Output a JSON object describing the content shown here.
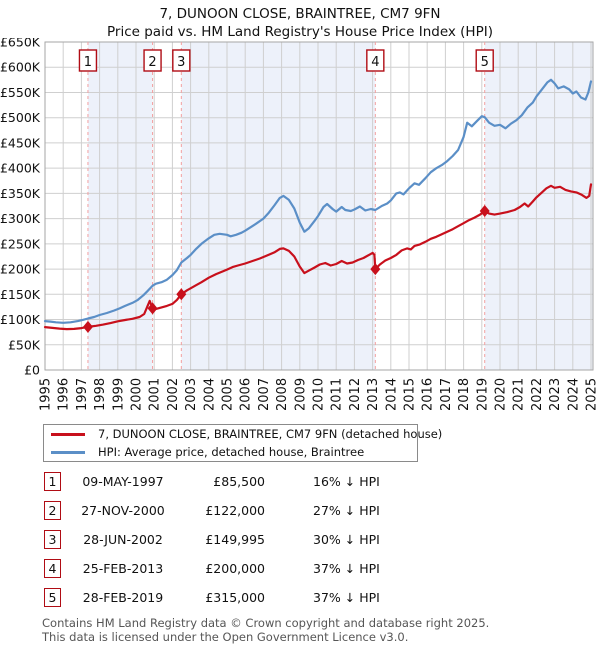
{
  "title": "7, DUNOON CLOSE, BRAINTREE, CM7 9FN",
  "subtitle": "Price paid vs. HM Land Registry's House Price Index (HPI)",
  "colors": {
    "price_line": "#c8101c",
    "hpi_line": "#5b8fc7",
    "band_fill": "#edf1fa",
    "sale_dashed_line": "#f2a0a0",
    "marker_box_border": "#b00c14",
    "grid": "#cfcfcf",
    "plot_border": "#a6a6a6",
    "plot_background": "#ffffff"
  },
  "chart_data": {
    "type": "line",
    "title": "7, DUNOON CLOSE, BRAINTREE, CM7 9FN",
    "subtitle": "Price paid vs. HM Land Registry's House Price Index (HPI)",
    "xlabel": "",
    "ylabel": "",
    "x_axis": {
      "min": 1995,
      "max": 2025,
      "tick_years": [
        1995,
        1996,
        1997,
        1998,
        1999,
        2000,
        2001,
        2002,
        2003,
        2004,
        2005,
        2006,
        2007,
        2008,
        2009,
        2010,
        2011,
        2012,
        2013,
        2014,
        2015,
        2016,
        2017,
        2018,
        2019,
        2020,
        2021,
        2022,
        2023,
        2024,
        2025
      ]
    },
    "y_axis": {
      "min": 0,
      "max": 650000,
      "step": 50000,
      "tick_labels": [
        "£0",
        "£50K",
        "£100K",
        "£150K",
        "£200K",
        "£250K",
        "£300K",
        "£350K",
        "£400K",
        "£450K",
        "£500K",
        "£550K",
        "£600K",
        "£650K"
      ]
    },
    "grid": true,
    "legend_position": "below",
    "values_unit": "GBP_thousands",
    "series": [
      {
        "name": "HPI: Average price, detached house, Braintree",
        "color": "#5b8fc7",
        "points": [
          [
            1995.0,
            97
          ],
          [
            1995.3,
            96
          ],
          [
            1995.6,
            94.5
          ],
          [
            1996.0,
            93.5
          ],
          [
            1996.4,
            94.5
          ],
          [
            1996.8,
            97
          ],
          [
            1997.1,
            99.5
          ],
          [
            1997.36,
            102
          ],
          [
            1997.7,
            105
          ],
          [
            1998.0,
            109
          ],
          [
            1998.4,
            113
          ],
          [
            1998.8,
            118
          ],
          [
            1999.1,
            122
          ],
          [
            1999.4,
            127
          ],
          [
            1999.8,
            133
          ],
          [
            2000.1,
            139
          ],
          [
            2000.4,
            148
          ],
          [
            2000.65,
            157
          ],
          [
            2000.91,
            167
          ],
          [
            2001.1,
            171
          ],
          [
            2001.4,
            174
          ],
          [
            2001.7,
            179
          ],
          [
            2002.0,
            188
          ],
          [
            2002.25,
            198
          ],
          [
            2002.49,
            213
          ],
          [
            2002.8,
            222
          ],
          [
            2003.0,
            228
          ],
          [
            2003.3,
            240
          ],
          [
            2003.6,
            250
          ],
          [
            2004.0,
            261
          ],
          [
            2004.3,
            268
          ],
          [
            2004.6,
            270
          ],
          [
            2005.0,
            268
          ],
          [
            2005.2,
            265
          ],
          [
            2005.5,
            268
          ],
          [
            2005.8,
            272
          ],
          [
            2006.0,
            276
          ],
          [
            2006.3,
            283
          ],
          [
            2006.6,
            290
          ],
          [
            2007.0,
            300
          ],
          [
            2007.3,
            312
          ],
          [
            2007.6,
            326
          ],
          [
            2007.9,
            341
          ],
          [
            2008.1,
            345
          ],
          [
            2008.4,
            337
          ],
          [
            2008.7,
            320
          ],
          [
            2009.0,
            292
          ],
          [
            2009.25,
            274
          ],
          [
            2009.5,
            281
          ],
          [
            2009.8,
            295
          ],
          [
            2010.0,
            305
          ],
          [
            2010.3,
            323
          ],
          [
            2010.5,
            329
          ],
          [
            2010.8,
            319
          ],
          [
            2011.0,
            314
          ],
          [
            2011.3,
            323
          ],
          [
            2011.5,
            317
          ],
          [
            2011.8,
            315
          ],
          [
            2012.0,
            318
          ],
          [
            2012.3,
            324
          ],
          [
            2012.6,
            316
          ],
          [
            2012.9,
            319
          ],
          [
            2013.15,
            317
          ],
          [
            2013.5,
            325
          ],
          [
            2013.8,
            330
          ],
          [
            2014.0,
            336
          ],
          [
            2014.3,
            350
          ],
          [
            2014.5,
            352
          ],
          [
            2014.7,
            348
          ],
          [
            2015.0,
            360
          ],
          [
            2015.3,
            370
          ],
          [
            2015.55,
            367
          ],
          [
            2015.9,
            380
          ],
          [
            2016.2,
            392
          ],
          [
            2016.5,
            400
          ],
          [
            2016.8,
            406
          ],
          [
            2017.1,
            414
          ],
          [
            2017.4,
            424
          ],
          [
            2017.7,
            436
          ],
          [
            2018.0,
            462
          ],
          [
            2018.2,
            490
          ],
          [
            2018.45,
            483
          ],
          [
            2018.7,
            492
          ],
          [
            2019.0,
            503
          ],
          [
            2019.16,
            501
          ],
          [
            2019.4,
            490
          ],
          [
            2019.7,
            484
          ],
          [
            2020.0,
            486
          ],
          [
            2020.3,
            479
          ],
          [
            2020.6,
            488
          ],
          [
            2020.9,
            495
          ],
          [
            2021.2,
            505
          ],
          [
            2021.5,
            520
          ],
          [
            2021.8,
            530
          ],
          [
            2022.0,
            542
          ],
          [
            2022.3,
            556
          ],
          [
            2022.6,
            570
          ],
          [
            2022.8,
            575
          ],
          [
            2023.0,
            568
          ],
          [
            2023.2,
            558
          ],
          [
            2023.5,
            562
          ],
          [
            2023.8,
            556
          ],
          [
            2024.0,
            548
          ],
          [
            2024.2,
            552
          ],
          [
            2024.45,
            540
          ],
          [
            2024.7,
            536
          ],
          [
            2024.85,
            550
          ],
          [
            2025.0,
            572
          ]
        ]
      },
      {
        "name": "7, DUNOON CLOSE, BRAINTREE, CM7 9FN (detached house)",
        "color": "#c8101c",
        "points": [
          [
            1995.0,
            85
          ],
          [
            1995.4,
            83.5
          ],
          [
            1995.8,
            82
          ],
          [
            1996.2,
            81
          ],
          [
            1996.6,
            81.5
          ],
          [
            1997.0,
            83
          ],
          [
            1997.36,
            85.5
          ],
          [
            1997.8,
            87.5
          ],
          [
            1998.2,
            90
          ],
          [
            1998.6,
            93
          ],
          [
            1999.0,
            96.5
          ],
          [
            1999.4,
            99
          ],
          [
            1999.8,
            101.5
          ],
          [
            2000.2,
            105
          ],
          [
            2000.45,
            111
          ],
          [
            2000.65,
            128
          ],
          [
            2000.75,
            137
          ],
          [
            2000.91,
            122
          ],
          [
            2001.1,
            121
          ],
          [
            2001.4,
            124
          ],
          [
            2001.7,
            127
          ],
          [
            2002.0,
            131
          ],
          [
            2002.25,
            139
          ],
          [
            2002.49,
            150
          ],
          [
            2002.8,
            158
          ],
          [
            2003.0,
            162
          ],
          [
            2003.3,
            168
          ],
          [
            2003.6,
            174
          ],
          [
            2004.0,
            183
          ],
          [
            2004.4,
            190
          ],
          [
            2004.8,
            196
          ],
          [
            2005.0,
            199
          ],
          [
            2005.3,
            204
          ],
          [
            2005.6,
            207
          ],
          [
            2006.0,
            211
          ],
          [
            2006.4,
            216
          ],
          [
            2006.8,
            221
          ],
          [
            2007.2,
            227
          ],
          [
            2007.6,
            233
          ],
          [
            2007.9,
            240
          ],
          [
            2008.1,
            241
          ],
          [
            2008.4,
            236
          ],
          [
            2008.7,
            225
          ],
          [
            2009.0,
            205
          ],
          [
            2009.25,
            192
          ],
          [
            2009.5,
            197
          ],
          [
            2009.8,
            203
          ],
          [
            2010.1,
            209
          ],
          [
            2010.4,
            212
          ],
          [
            2010.7,
            207
          ],
          [
            2011.0,
            210
          ],
          [
            2011.3,
            216
          ],
          [
            2011.6,
            211
          ],
          [
            2011.9,
            213
          ],
          [
            2012.2,
            218
          ],
          [
            2012.5,
            222
          ],
          [
            2012.8,
            228
          ],
          [
            2013.0,
            232
          ],
          [
            2013.1,
            228
          ],
          [
            2013.15,
            200
          ],
          [
            2013.4,
            209
          ],
          [
            2013.7,
            217
          ],
          [
            2014.0,
            222
          ],
          [
            2014.3,
            228
          ],
          [
            2014.6,
            237
          ],
          [
            2014.9,
            241
          ],
          [
            2015.1,
            239
          ],
          [
            2015.3,
            246
          ],
          [
            2015.6,
            249
          ],
          [
            2015.9,
            254
          ],
          [
            2016.2,
            260
          ],
          [
            2016.5,
            264
          ],
          [
            2016.8,
            269
          ],
          [
            2017.1,
            274
          ],
          [
            2017.4,
            279
          ],
          [
            2017.7,
            285
          ],
          [
            2018.0,
            291
          ],
          [
            2018.3,
            297
          ],
          [
            2018.6,
            302
          ],
          [
            2018.9,
            308
          ],
          [
            2019.16,
            315
          ],
          [
            2019.4,
            310
          ],
          [
            2019.7,
            308
          ],
          [
            2020.0,
            310
          ],
          [
            2020.4,
            313
          ],
          [
            2020.8,
            317
          ],
          [
            2021.1,
            323
          ],
          [
            2021.35,
            330
          ],
          [
            2021.55,
            324
          ],
          [
            2021.8,
            334
          ],
          [
            2022.0,
            342
          ],
          [
            2022.3,
            352
          ],
          [
            2022.55,
            360
          ],
          [
            2022.8,
            365
          ],
          [
            2023.0,
            361
          ],
          [
            2023.3,
            363
          ],
          [
            2023.6,
            357
          ],
          [
            2023.9,
            354
          ],
          [
            2024.2,
            352
          ],
          [
            2024.5,
            347
          ],
          [
            2024.75,
            341
          ],
          [
            2024.9,
            345
          ],
          [
            2025.0,
            368
          ]
        ]
      }
    ],
    "sales": [
      {
        "n": "1",
        "year": 1997.36,
        "price_k": 85.5
      },
      {
        "n": "2",
        "year": 2000.91,
        "price_k": 122
      },
      {
        "n": "3",
        "year": 2002.49,
        "price_k": 150
      },
      {
        "n": "4",
        "year": 2013.15,
        "price_k": 200
      },
      {
        "n": "5",
        "year": 2019.16,
        "price_k": 315
      }
    ],
    "shaded_bands_years": [
      [
        1997.36,
        2000.91
      ],
      [
        2002.49,
        2013.15
      ],
      [
        2019.16,
        2025.12
      ]
    ]
  },
  "legend": {
    "items": [
      {
        "label": "7, DUNOON CLOSE, BRAINTREE, CM7 9FN (detached house)",
        "color": "#c8101c"
      },
      {
        "label": "HPI: Average price, detached house, Braintree",
        "color": "#5b8fc7"
      }
    ]
  },
  "table": {
    "rows": [
      {
        "num": "1",
        "date": "09-MAY-1997",
        "price": "£85,500",
        "hpi": "16% ↓ HPI"
      },
      {
        "num": "2",
        "date": "27-NOV-2000",
        "price": "£122,000",
        "hpi": "27% ↓ HPI"
      },
      {
        "num": "3",
        "date": "28-JUN-2002",
        "price": "£149,995",
        "hpi": "30% ↓ HPI"
      },
      {
        "num": "4",
        "date": "25-FEB-2013",
        "price": "£200,000",
        "hpi": "37% ↓ HPI"
      },
      {
        "num": "5",
        "date": "28-FEB-2019",
        "price": "£315,000",
        "hpi": "37% ↓ HPI"
      }
    ]
  },
  "footer": {
    "line1": "Contains HM Land Registry data © Crown copyright and database right 2025.",
    "line2": "This data is licensed under the Open Government Licence v3.0."
  }
}
